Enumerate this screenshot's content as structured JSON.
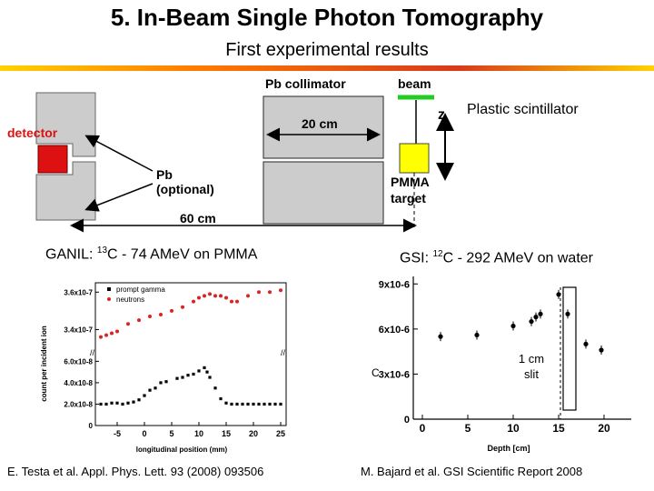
{
  "slide": {
    "title": "5. In-Beam Single Photon Tomography",
    "subtitle": "First experimental results"
  },
  "setup": {
    "collimator_label": "Pb collimator",
    "beam_label": "beam",
    "z_label": "z",
    "scintillator_label": "Plastic scintillator",
    "detector_label": "detector",
    "collimator_length": "20 cm",
    "pb_label": "Pb",
    "pb_optional_label": "(optional)",
    "target_label_1": "PMMA",
    "target_label_2": "target",
    "distance_label": "60 cm",
    "colors": {
      "detector": "#dd1111",
      "target": "#ffff00",
      "beam": "#22cc22",
      "lead": "#cccccc"
    }
  },
  "ganil": {
    "caption_prefix": "GANIL: ",
    "caption_sup": "13",
    "caption_suffix": "C - 74 AMeV on PMMA",
    "reference": "E. Testa et al. Appl. Phys. Lett. 93 (2008) 093506"
  },
  "gsi": {
    "caption_prefix": "GSI: ",
    "caption_sup": "12",
    "caption_suffix": "C - 292 AMeV on water",
    "slit_label_1": "1 cm",
    "slit_label_2": "slit",
    "reference": "M. Bajard et al. GSI Scientific Report 2008"
  },
  "chart_data": [
    {
      "type": "scatter",
      "xlabel": "longitudinal position (mm)",
      "ylabel": "count per incident ion",
      "xticks": [
        "-5",
        "0",
        "5",
        "10",
        "15",
        "20",
        "25"
      ],
      "yticks": [
        "0",
        "2.0x10-8",
        "4.0x10-8",
        "6.0x10-8",
        "3.4x10-7",
        "3.6x10-7"
      ],
      "series": [
        {
          "name": "prompt gamma",
          "color": "#000000",
          "points": [
            [
              -8,
              2e-08
            ],
            [
              -7,
              2e-08
            ],
            [
              -6,
              2.1e-08
            ],
            [
              -5,
              2.1e-08
            ],
            [
              -4,
              2e-08
            ],
            [
              -3,
              2.1e-08
            ],
            [
              -2,
              2.2e-08
            ],
            [
              -1,
              2.4e-08
            ],
            [
              0,
              2.8e-08
            ],
            [
              1,
              3.3e-08
            ],
            [
              2,
              3.5e-08
            ],
            [
              3,
              4e-08
            ],
            [
              4,
              4.1e-08
            ],
            [
              6,
              4.4e-08
            ],
            [
              7,
              4.5e-08
            ],
            [
              8,
              4.7e-08
            ],
            [
              9,
              4.8e-08
            ],
            [
              10,
              5.1e-08
            ],
            [
              11,
              5.4e-08
            ],
            [
              11.5,
              5e-08
            ],
            [
              12,
              4.5e-08
            ],
            [
              13,
              3.5e-08
            ],
            [
              14,
              2.5e-08
            ],
            [
              15,
              2.1e-08
            ],
            [
              16,
              2e-08
            ],
            [
              17,
              2e-08
            ],
            [
              18,
              2e-08
            ],
            [
              19,
              2e-08
            ],
            [
              20,
              2e-08
            ],
            [
              21,
              2e-08
            ],
            [
              22,
              2e-08
            ],
            [
              23,
              2e-08
            ],
            [
              24,
              2e-08
            ],
            [
              25,
              2e-08
            ]
          ]
        },
        {
          "name": "neutrons",
          "color": "#dd2222",
          "points": [
            [
              -8,
              3.36e-07
            ],
            [
              -7,
              3.37e-07
            ],
            [
              -6,
              3.38e-07
            ],
            [
              -5,
              3.39e-07
            ],
            [
              -3,
              3.43e-07
            ],
            [
              -1,
              3.45e-07
            ],
            [
              1,
              3.47e-07
            ],
            [
              3,
              3.48e-07
            ],
            [
              5,
              3.5e-07
            ],
            [
              7,
              3.52e-07
            ],
            [
              9,
              3.55e-07
            ],
            [
              10,
              3.57e-07
            ],
            [
              11,
              3.58e-07
            ],
            [
              12,
              3.59e-07
            ],
            [
              13,
              3.58e-07
            ],
            [
              14,
              3.58e-07
            ],
            [
              15,
              3.57e-07
            ],
            [
              16,
              3.55e-07
            ],
            [
              17,
              3.55e-07
            ],
            [
              19,
              3.58e-07
            ],
            [
              21,
              3.6e-07
            ],
            [
              23,
              3.6e-07
            ],
            [
              25,
              3.61e-07
            ]
          ]
        }
      ]
    },
    {
      "type": "scatter",
      "xlabel": "Depth [cm]",
      "ylabel": "C",
      "xticks": [
        "0",
        "5",
        "10",
        "15",
        "20"
      ],
      "yticks": [
        "0",
        "3x10-6",
        "6x10-6",
        "9x10-6"
      ],
      "series": [
        {
          "name": "",
          "color": "#000000",
          "points": [
            [
              2,
              5.5e-06
            ],
            [
              6,
              5.6e-06
            ],
            [
              10,
              6.2e-06
            ],
            [
              12,
              6.5e-06
            ],
            [
              12.5,
              6.8e-06
            ],
            [
              13,
              7e-06
            ],
            [
              15,
              8.3e-06
            ],
            [
              16,
              7e-06
            ],
            [
              18,
              5e-06
            ],
            [
              19.7,
              4.6e-06
            ]
          ]
        }
      ]
    }
  ]
}
